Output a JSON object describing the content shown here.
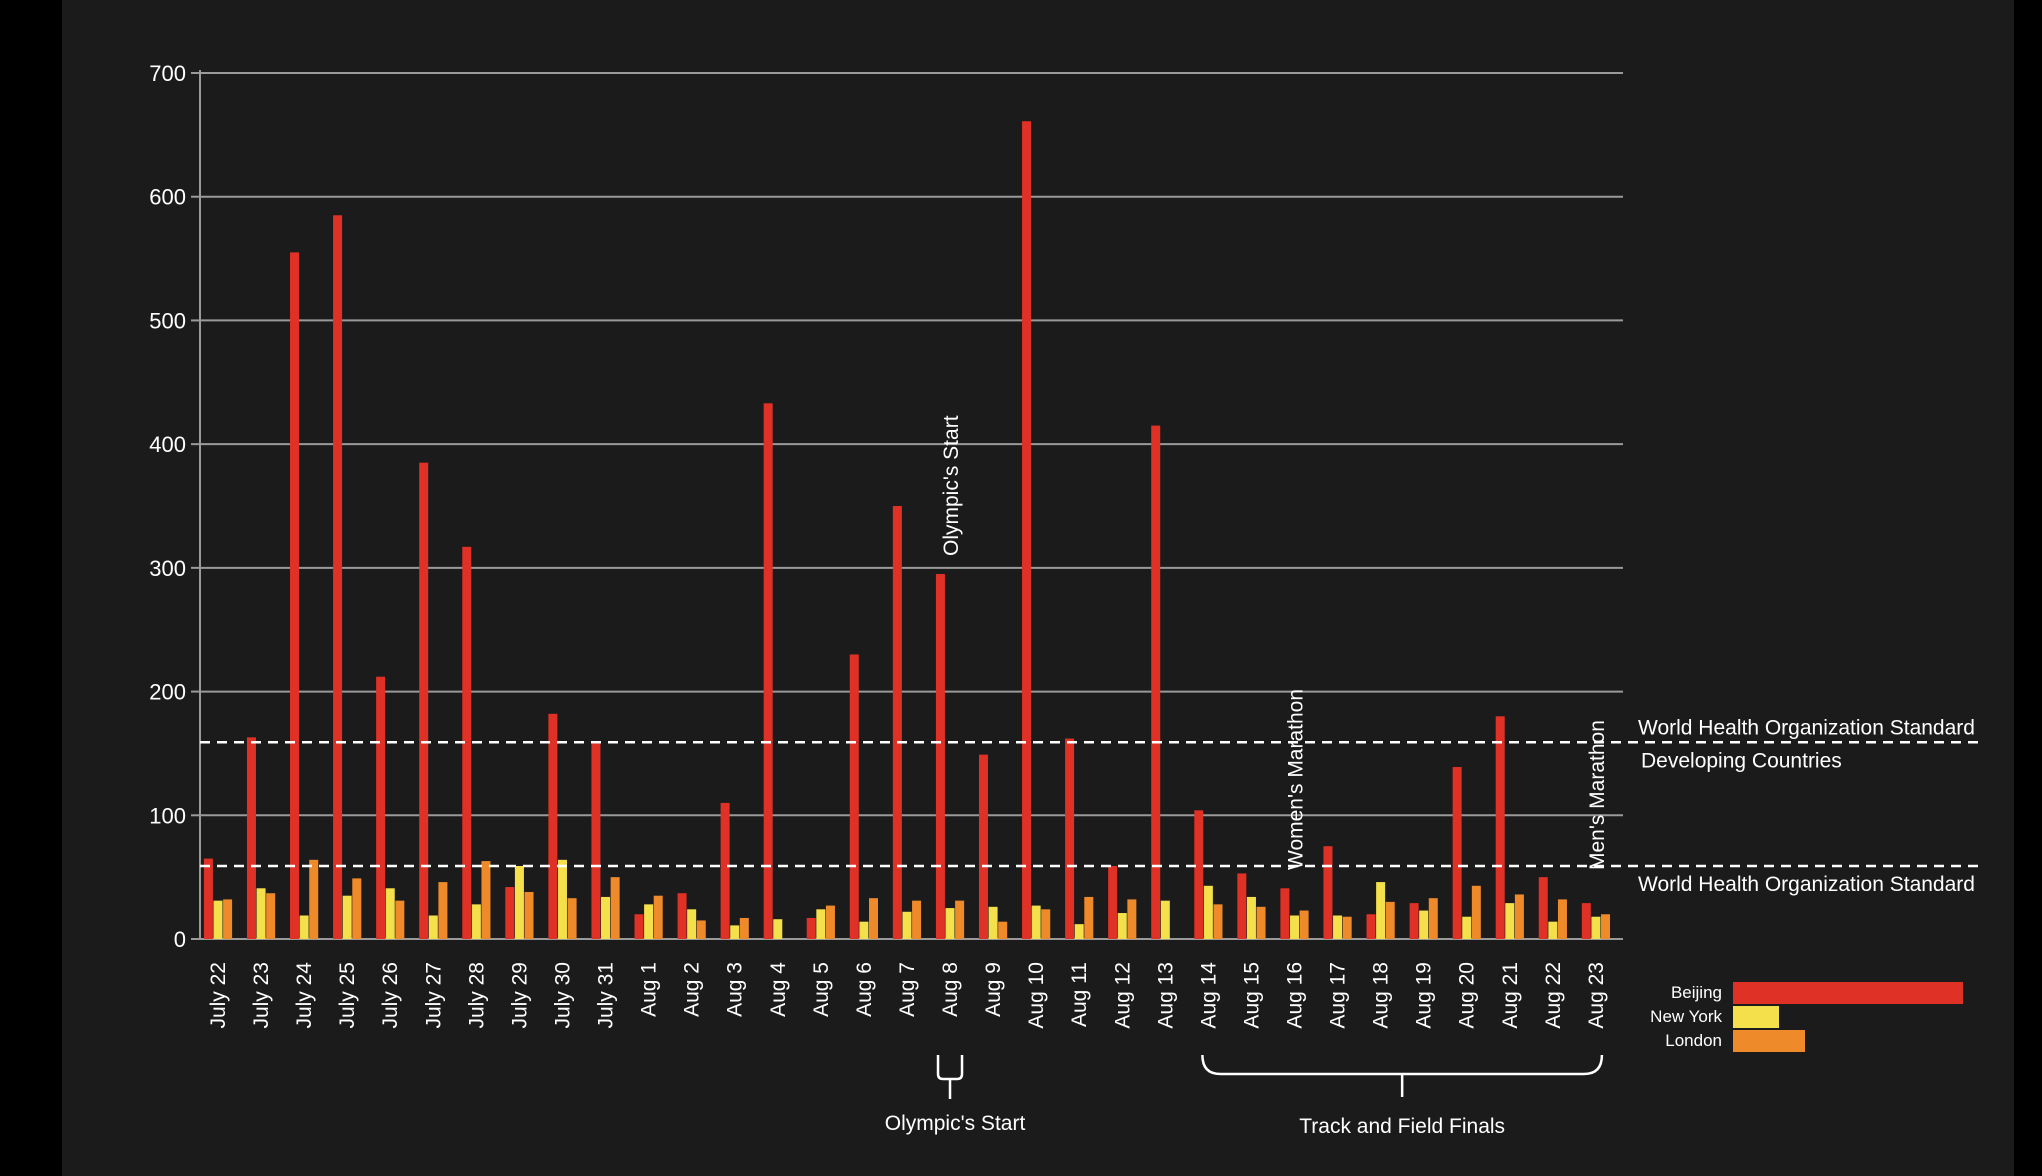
{
  "colors": {
    "background": "#1c1b1c",
    "grid": "#9a9a9a",
    "text": "#ffffff",
    "beijing": "#e03126",
    "new_york": "#f4e04a",
    "london": "#ef8a2a"
  },
  "chart_data": {
    "type": "bar",
    "title": "",
    "xlabel": "",
    "ylabel": "",
    "ylim": [
      0,
      700
    ],
    "yticks": [
      0,
      100,
      200,
      300,
      400,
      500,
      600,
      700
    ],
    "grid": true,
    "legend_position": "bottom-right",
    "categories": [
      "July 22",
      "July 23",
      "July 24",
      "July 25",
      "July 26",
      "July 27",
      "July 28",
      "July 29",
      "July 30",
      "July 31",
      "Aug 1",
      "Aug 2",
      "Aug 3",
      "Aug 4",
      "Aug 5",
      "Aug 6",
      "Aug 7",
      "Aug 8",
      "Aug 9",
      "Aug 10",
      "Aug 11",
      "Aug 12",
      "Aug 13",
      "Aug 14",
      "Aug 15",
      "Aug 16",
      "Aug 17",
      "Aug 18",
      "Aug 19",
      "Aug 20",
      "Aug 21",
      "Aug 22",
      "Aug 23"
    ],
    "series": [
      {
        "name": "Beijing",
        "color": "#e03126",
        "values": [
          65,
          163,
          555,
          585,
          212,
          385,
          317,
          42,
          182,
          158,
          20,
          37,
          110,
          433,
          17,
          230,
          350,
          295,
          149,
          661,
          162,
          59,
          415,
          104,
          53,
          41,
          75,
          20,
          29,
          139,
          180,
          50,
          29
        ]
      },
      {
        "name": "New York",
        "color": "#f4e04a",
        "values": [
          31,
          41,
          19,
          35,
          41,
          19,
          28,
          59,
          64,
          34,
          28,
          24,
          11,
          16,
          24,
          14,
          22,
          25,
          26,
          27,
          12,
          21,
          31,
          43,
          34,
          19,
          19,
          46,
          23,
          18,
          29,
          14,
          18
        ]
      },
      {
        "name": "London",
        "color": "#ef8a2a",
        "values": [
          32,
          37,
          64,
          49,
          31,
          46,
          63,
          38,
          33,
          50,
          35,
          15,
          17,
          0,
          27,
          33,
          31,
          31,
          14,
          24,
          34,
          32,
          0,
          28,
          26,
          23,
          18,
          30,
          33,
          43,
          36,
          32,
          20
        ]
      }
    ],
    "reference_lines": [
      {
        "value": 159,
        "label_line1": "World Health Organization Standard",
        "label_line2": "Developing Countries"
      },
      {
        "value": 59,
        "label_line1": "World Health Organization Standard"
      }
    ],
    "bar_annotations": [
      {
        "category": "Aug 8",
        "label": "Olympic's Start"
      },
      {
        "category": "Aug 16",
        "label": "Women's Marathon"
      },
      {
        "category": "Aug 23",
        "label": "Men's Marathon"
      }
    ],
    "brackets": [
      {
        "from": "Aug 8",
        "to": "Aug 8",
        "label": "Olympic's Start"
      },
      {
        "from": "Aug 14",
        "to": "Aug 23",
        "label": "Track and Field Finals"
      }
    ]
  }
}
